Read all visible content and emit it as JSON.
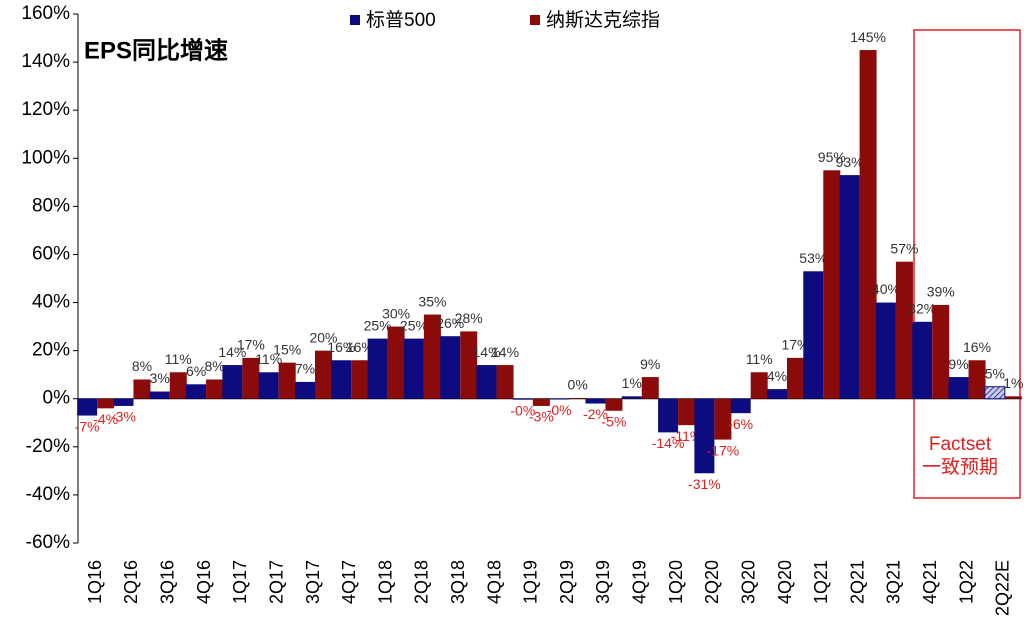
{
  "chart_data": {
    "type": "bar",
    "title": "EPS同比增速",
    "categories": [
      "1Q16",
      "2Q16",
      "3Q16",
      "4Q16",
      "1Q17",
      "2Q17",
      "3Q17",
      "4Q17",
      "1Q18",
      "2Q18",
      "3Q18",
      "4Q18",
      "1Q19",
      "2Q19",
      "3Q19",
      "4Q19",
      "1Q20",
      "2Q20",
      "3Q20",
      "4Q20",
      "1Q21",
      "2Q21",
      "3Q21",
      "4Q21",
      "1Q22",
      "2Q22E"
    ],
    "series": [
      {
        "name": "标普500",
        "color": "#0c0c80",
        "hatched": [
          25
        ],
        "values": [
          -7,
          -3,
          3,
          6,
          14,
          11,
          7,
          16,
          25,
          25,
          26,
          14,
          -0.4,
          -0.3,
          -2,
          1,
          -14,
          -31,
          -6,
          4,
          53,
          93,
          40,
          32,
          9,
          5
        ],
        "value_labels": [
          "-7%",
          "-3%",
          "3%",
          "6%",
          "14%",
          "11%",
          "7%",
          "16%",
          "25%",
          "25%",
          "26%",
          "14%",
          "-0%",
          "-0%",
          "-2%",
          "1%",
          "-14%",
          "-31%",
          "-6%",
          "4%",
          "53%",
          "93%",
          "40%",
          "32%",
          "9%",
          "5%"
        ]
      },
      {
        "name": "纳斯达克综指",
        "color": "#8b0a0a",
        "values": [
          -4,
          8,
          11,
          8,
          17,
          15,
          20,
          16,
          30,
          35,
          28,
          14,
          -3,
          0.3,
          -5,
          9,
          -11,
          -17,
          11,
          17,
          95,
          145,
          57,
          39,
          16,
          1
        ],
        "value_labels": [
          "-4%",
          "8%",
          "11%",
          "8%",
          "17%",
          "15%",
          "20%",
          "16%",
          "30%",
          "35%",
          "28%",
          "14%",
          "-3%",
          "0%",
          "-5%",
          "9%",
          "-11%",
          "-17%",
          "11%",
          "17%",
          "95%",
          "145%",
          "57%",
          "39%",
          "16%",
          "1%"
        ]
      }
    ],
    "ylim": [
      -60,
      160
    ],
    "yticks": [
      {
        "value": -60,
        "label": "-60%"
      },
      {
        "value": -40,
        "label": "-40%"
      },
      {
        "value": -20,
        "label": "-20%"
      },
      {
        "value": 0,
        "label": "0%"
      },
      {
        "value": 20,
        "label": "20%"
      },
      {
        "value": 40,
        "label": "40%"
      },
      {
        "value": 60,
        "label": "60%"
      },
      {
        "value": 80,
        "label": "80%"
      },
      {
        "value": 100,
        "label": "100%"
      },
      {
        "value": 120,
        "label": "120%"
      },
      {
        "value": 140,
        "label": "140%"
      },
      {
        "value": 160,
        "label": "160%"
      }
    ],
    "annotation": [
      "Factset",
      "一致预期"
    ]
  }
}
